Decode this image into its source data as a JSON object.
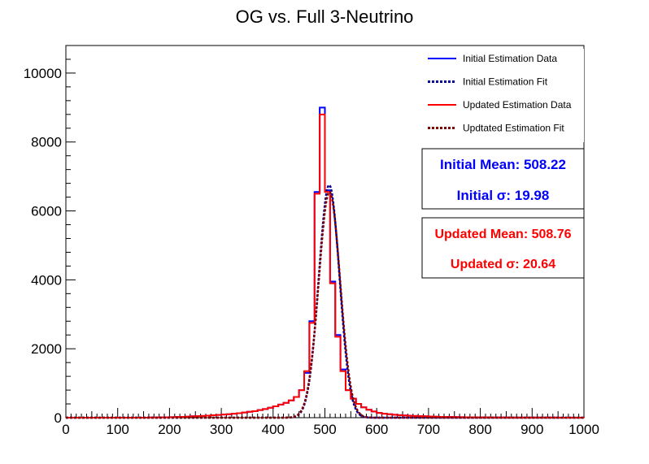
{
  "chart_data": {
    "type": "line",
    "title": "OG vs. Full 3-Neutrino",
    "xlabel": "",
    "ylabel": "",
    "xlim": [
      0,
      1000
    ],
    "ylim": [
      0,
      10800
    ],
    "bin_width": 10,
    "x_ticks": [
      0,
      100,
      200,
      300,
      400,
      500,
      600,
      700,
      800,
      900,
      1000
    ],
    "y_ticks": [
      0,
      2000,
      4000,
      6000,
      8000,
      10000
    ],
    "legend_position": "top-right",
    "legend": [
      {
        "label": "Initial Estimation Data",
        "color": "#0000ff",
        "style": "solid"
      },
      {
        "label": "Initial Estimation Fit",
        "color": "#000099",
        "style": "dotted"
      },
      {
        "label": "Updated Estimation Data",
        "color": "#ff0000",
        "style": "solid"
      },
      {
        "label": "Updtated Estimation Fit",
        "color": "#800000",
        "style": "dotted"
      }
    ],
    "series": [
      {
        "name": "Initial Estimation Data",
        "kind": "histogram",
        "color": "#0000ff",
        "bin_edges": [
          0,
          10,
          20,
          30,
          40,
          50,
          60,
          70,
          80,
          90,
          100,
          110,
          120,
          130,
          140,
          150,
          160,
          170,
          180,
          190,
          200,
          210,
          220,
          230,
          240,
          250,
          260,
          270,
          280,
          290,
          300,
          310,
          320,
          330,
          340,
          350,
          360,
          370,
          380,
          390,
          400,
          410,
          420,
          430,
          440,
          450,
          460,
          470,
          480,
          490,
          500,
          510,
          520,
          530,
          540,
          550,
          560,
          570,
          580,
          590,
          600,
          610,
          620,
          630,
          640,
          650,
          660,
          670,
          680,
          690,
          700,
          710,
          720,
          730,
          740,
          750,
          760,
          770,
          780,
          790,
          800,
          810,
          820,
          830,
          840,
          850,
          860,
          870,
          880,
          890,
          900,
          910,
          920,
          930,
          940,
          950,
          960,
          970,
          980,
          990,
          1000
        ],
        "counts": [
          0,
          0,
          0,
          0,
          0,
          0,
          0,
          0,
          0,
          0,
          0,
          0,
          0,
          0,
          0,
          0,
          5,
          5,
          10,
          10,
          15,
          20,
          25,
          30,
          40,
          45,
          50,
          60,
          70,
          80,
          90,
          100,
          115,
          130,
          150,
          170,
          190,
          220,
          250,
          290,
          330,
          380,
          430,
          500,
          600,
          800,
          1300,
          2800,
          6550,
          9000,
          6600,
          3950,
          2400,
          1400,
          800,
          550,
          400,
          300,
          230,
          180,
          140,
          115,
          100,
          85,
          75,
          65,
          55,
          50,
          45,
          40,
          35,
          30,
          25,
          22,
          20,
          18,
          15,
          13,
          12,
          10,
          10,
          8,
          7,
          6,
          5,
          5,
          4,
          4,
          3,
          3,
          2,
          2,
          2,
          2,
          2,
          1,
          1,
          1,
          1,
          1
        ]
      },
      {
        "name": "Initial Estimation Fit",
        "kind": "gaussian",
        "color": "#000099",
        "mean": 508.22,
        "sigma": 19.98,
        "amplitude": 6750
      },
      {
        "name": "Updated Estimation Data",
        "kind": "histogram",
        "color": "#ff0000",
        "bin_edges": [
          0,
          10,
          20,
          30,
          40,
          50,
          60,
          70,
          80,
          90,
          100,
          110,
          120,
          130,
          140,
          150,
          160,
          170,
          180,
          190,
          200,
          210,
          220,
          230,
          240,
          250,
          260,
          270,
          280,
          290,
          300,
          310,
          320,
          330,
          340,
          350,
          360,
          370,
          380,
          390,
          400,
          410,
          420,
          430,
          440,
          450,
          460,
          470,
          480,
          490,
          500,
          510,
          520,
          530,
          540,
          550,
          560,
          570,
          580,
          590,
          600,
          610,
          620,
          630,
          640,
          650,
          660,
          670,
          680,
          690,
          700,
          710,
          720,
          730,
          740,
          750,
          760,
          770,
          780,
          790,
          800,
          810,
          820,
          830,
          840,
          850,
          860,
          870,
          880,
          890,
          900,
          910,
          920,
          930,
          940,
          950,
          960,
          970,
          980,
          990,
          1000
        ],
        "counts": [
          0,
          0,
          0,
          0,
          0,
          0,
          0,
          0,
          0,
          0,
          0,
          0,
          0,
          0,
          0,
          0,
          5,
          5,
          10,
          10,
          15,
          20,
          25,
          30,
          40,
          45,
          50,
          60,
          70,
          80,
          90,
          100,
          115,
          130,
          150,
          170,
          190,
          220,
          250,
          290,
          330,
          380,
          430,
          500,
          600,
          800,
          1350,
          2750,
          6500,
          8800,
          6550,
          3900,
          2350,
          1350,
          800,
          550,
          400,
          300,
          230,
          180,
          140,
          115,
          100,
          85,
          75,
          65,
          55,
          50,
          45,
          40,
          35,
          30,
          25,
          22,
          20,
          18,
          15,
          13,
          12,
          10,
          10,
          8,
          7,
          6,
          5,
          5,
          4,
          4,
          3,
          3,
          2,
          2,
          2,
          2,
          2,
          1,
          1,
          1,
          1,
          1
        ]
      },
      {
        "name": "Updtated Estimation Fit",
        "kind": "gaussian",
        "color": "#800000",
        "mean": 508.76,
        "sigma": 20.64,
        "amplitude": 6550
      }
    ]
  },
  "stats": {
    "initial": {
      "mean_text": "Initial Mean: 508.22",
      "sigma_text": "Initial σ: 19.98",
      "color": "#0000ff"
    },
    "updated": {
      "mean_text": "Updated Mean: 508.76",
      "sigma_text": "Updated σ: 20.64",
      "color": "#ff0000"
    }
  }
}
